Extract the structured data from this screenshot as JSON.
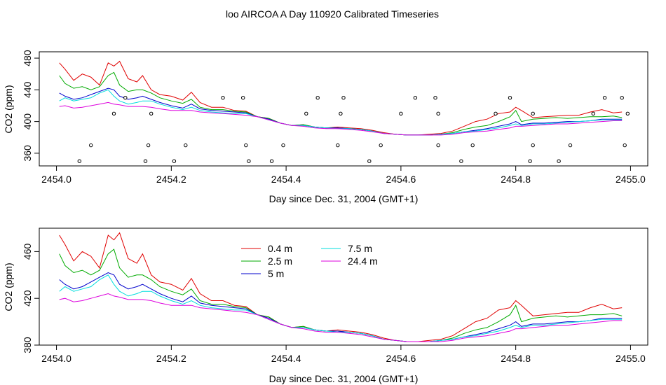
{
  "title": "loo AIRCOA A  Day 110920  Calibrated Timeseries",
  "chart_data": [
    {
      "type": "line",
      "xlabel": "Day since Dec. 31, 2004 (GMT+1)",
      "ylabel": "CO2 (ppm)",
      "xlim": [
        2453.97,
        2455.03
      ],
      "ylim": [
        344,
        488
      ],
      "xticks": [
        2454.0,
        2454.2,
        2454.4,
        2454.6,
        2454.8,
        2455.0
      ],
      "xtick_labels": [
        "2454.0",
        "2454.2",
        "2454.4",
        "2454.6",
        "2454.8",
        "2455.0"
      ],
      "yticks": [
        360,
        400,
        440,
        480
      ],
      "ytick_labels": [
        "360",
        "400",
        "440",
        "480"
      ],
      "grid": false,
      "legend": "none",
      "x": [
        2454.005,
        2454.015,
        2454.03,
        2454.045,
        2454.06,
        2454.075,
        2454.09,
        2454.1,
        2454.11,
        2454.125,
        2454.14,
        2454.15,
        2454.165,
        2454.18,
        2454.2,
        2454.22,
        2454.235,
        2454.25,
        2454.27,
        2454.29,
        2454.31,
        2454.33,
        2454.35,
        2454.37,
        2454.39,
        2454.41,
        2454.43,
        2454.45,
        2454.47,
        2454.49,
        2454.51,
        2454.53,
        2454.55,
        2454.57,
        2454.59,
        2454.61,
        2454.63,
        2454.65,
        2454.67,
        2454.69,
        2454.71,
        2454.73,
        2454.75,
        2454.77,
        2454.79,
        2454.8,
        2454.81,
        2454.83,
        2454.85,
        2454.87,
        2454.89,
        2454.91,
        2454.93,
        2454.95,
        2454.97,
        2454.985
      ],
      "series": [
        {
          "name": "0.4 m",
          "color": "#e00000",
          "values": [
            474,
            466,
            452,
            460,
            456,
            446,
            474,
            470,
            476,
            454,
            450,
            458,
            440,
            434,
            432,
            427,
            437,
            424,
            418,
            418,
            414,
            413,
            406,
            404,
            398,
            395,
            396,
            393,
            392,
            393,
            392,
            391,
            389,
            386,
            384,
            383,
            383,
            384,
            385,
            388,
            394,
            400,
            403,
            410,
            412,
            418,
            414,
            405,
            406,
            407,
            408,
            408,
            412,
            415,
            411,
            412
          ]
        },
        {
          "name": "2.5 m",
          "color": "#00aa00",
          "values": [
            458,
            448,
            442,
            444,
            440,
            444,
            458,
            462,
            446,
            438,
            440,
            440,
            436,
            430,
            426,
            423,
            428,
            418,
            415,
            415,
            413,
            412,
            406,
            404,
            398,
            395,
            396,
            393,
            392,
            392,
            391,
            390,
            388,
            385,
            384,
            383,
            383,
            383,
            384,
            386,
            390,
            393,
            395,
            400,
            406,
            414,
            400,
            403,
            404,
            405,
            404,
            405,
            406,
            406,
            407,
            405
          ]
        },
        {
          "name": "5 m",
          "color": "#0000cc",
          "values": [
            436,
            432,
            428,
            430,
            434,
            438,
            442,
            440,
            432,
            428,
            430,
            432,
            428,
            424,
            420,
            417,
            422,
            416,
            414,
            413,
            412,
            411,
            406,
            403,
            398,
            395,
            395,
            393,
            392,
            392,
            391,
            390,
            388,
            385,
            384,
            383,
            383,
            383,
            384,
            385,
            387,
            389,
            391,
            394,
            397,
            400,
            396,
            398,
            398,
            399,
            400,
            400,
            401,
            403,
            403,
            403
          ]
        },
        {
          "name": "7.5 m",
          "color": "#00dddd",
          "values": [
            426,
            430,
            426,
            428,
            430,
            436,
            440,
            432,
            426,
            422,
            424,
            426,
            426,
            422,
            418,
            415,
            418,
            414,
            412,
            411,
            410,
            410,
            406,
            402,
            398,
            395,
            395,
            393,
            392,
            391,
            391,
            390,
            388,
            385,
            384,
            383,
            383,
            383,
            384,
            385,
            387,
            388,
            390,
            392,
            395,
            397,
            395,
            397,
            397,
            398,
            399,
            400,
            401,
            402,
            402,
            402
          ]
        },
        {
          "name": "24.4 m",
          "color": "#dd00dd",
          "values": [
            419,
            420,
            417,
            418,
            420,
            422,
            424,
            422,
            421,
            419,
            419,
            419,
            418,
            416,
            414,
            414,
            414,
            412,
            411,
            410,
            409,
            408,
            406,
            402,
            398,
            395,
            394,
            392,
            391,
            391,
            390,
            389,
            387,
            385,
            384,
            383,
            383,
            383,
            383,
            384,
            386,
            387,
            388,
            390,
            392,
            394,
            394,
            395,
            396,
            397,
            397,
            398,
            399,
            400,
            401,
            401
          ]
        }
      ],
      "markers": {
        "shape": "open-circle",
        "x": [
          2454.04,
          2454.06,
          2454.1,
          2454.12,
          2454.155,
          2454.16,
          2454.165,
          2454.205,
          2454.225,
          2454.29,
          2454.325,
          2454.33,
          2454.335,
          2454.375,
          2454.395,
          2454.435,
          2454.455,
          2454.49,
          2454.495,
          2454.5,
          2454.545,
          2454.565,
          2454.6,
          2454.625,
          2454.66,
          2454.665,
          2454.665,
          2454.705,
          2454.725,
          2454.765,
          2454.79,
          2454.825,
          2454.83,
          2454.83,
          2454.875,
          2454.895,
          2454.935,
          2454.955,
          2454.985,
          2454.99,
          2454.995
        ],
        "y": [
          350,
          370,
          410,
          430,
          350,
          370,
          410,
          350,
          370,
          430,
          430,
          370,
          350,
          350,
          370,
          410,
          430,
          370,
          410,
          430,
          350,
          370,
          410,
          430,
          430,
          410,
          370,
          350,
          370,
          410,
          430,
          350,
          370,
          410,
          350,
          370,
          410,
          430,
          430,
          370,
          410
        ]
      }
    },
    {
      "type": "line",
      "xlabel": "Day since Dec. 31, 2004 (GMT+1)",
      "ylabel": "CO2 (ppm)",
      "xlim": [
        2453.97,
        2455.03
      ],
      "ylim": [
        380,
        480
      ],
      "xticks": [
        2454.0,
        2454.2,
        2454.4,
        2454.6,
        2454.8,
        2455.0
      ],
      "xtick_labels": [
        "2454.0",
        "2454.2",
        "2454.4",
        "2454.6",
        "2454.8",
        "2455.0"
      ],
      "yticks": [
        380,
        420,
        460
      ],
      "ytick_labels": [
        "380",
        "420",
        "460"
      ],
      "grid": false,
      "legend": "top-center",
      "legend_entries": [
        "0.4 m",
        "2.5 m",
        "5 m",
        "7.5 m",
        "24.4 m"
      ],
      "note": "same series as panel 1"
    }
  ]
}
